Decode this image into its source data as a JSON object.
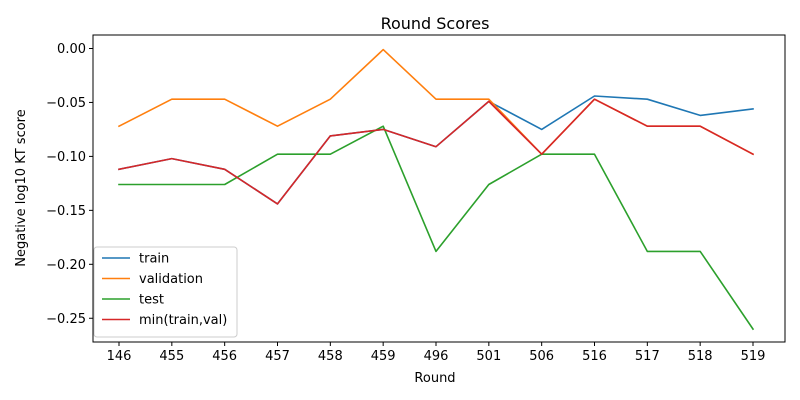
{
  "chart_data": {
    "type": "line",
    "title": "Round Scores",
    "xlabel": "Round",
    "ylabel": "Negative log10 KT score",
    "categories": [
      "146",
      "455",
      "456",
      "457",
      "458",
      "459",
      "496",
      "501",
      "506",
      "516",
      "517",
      "518",
      "519"
    ],
    "ylim": [
      -0.272,
      0.0125
    ],
    "yticks": [
      0.0,
      -0.05,
      -0.1,
      -0.15,
      -0.2,
      -0.25
    ],
    "ytick_labels": [
      "0.00",
      "−0.05",
      "−0.10",
      "−0.15",
      "−0.20",
      "−0.25"
    ],
    "legend_position": "lower-left",
    "grid": false,
    "series": [
      {
        "name": "train",
        "color": "#1f77b4",
        "values": [
          -0.112,
          -0.102,
          -0.112,
          -0.144,
          -0.081,
          -0.075,
          -0.091,
          -0.049,
          -0.075,
          -0.044,
          -0.047,
          -0.062,
          -0.056
        ]
      },
      {
        "name": "validation",
        "color": "#ff7f0e",
        "values": [
          -0.072,
          -0.047,
          -0.047,
          -0.072,
          -0.047,
          -0.001,
          -0.047,
          -0.047,
          -0.098,
          -0.047,
          -0.072,
          -0.072,
          -0.098
        ]
      },
      {
        "name": "test",
        "color": "#2ca02c",
        "values": [
          -0.126,
          -0.126,
          -0.126,
          -0.098,
          -0.098,
          -0.072,
          -0.188,
          -0.126,
          -0.098,
          -0.098,
          -0.188,
          -0.188,
          -0.26
        ]
      },
      {
        "name": "min(train,val)",
        "color": "#d62728",
        "values": [
          -0.112,
          -0.102,
          -0.112,
          -0.144,
          -0.081,
          -0.075,
          -0.091,
          -0.049,
          -0.098,
          -0.047,
          -0.072,
          -0.072,
          -0.098
        ]
      }
    ]
  }
}
